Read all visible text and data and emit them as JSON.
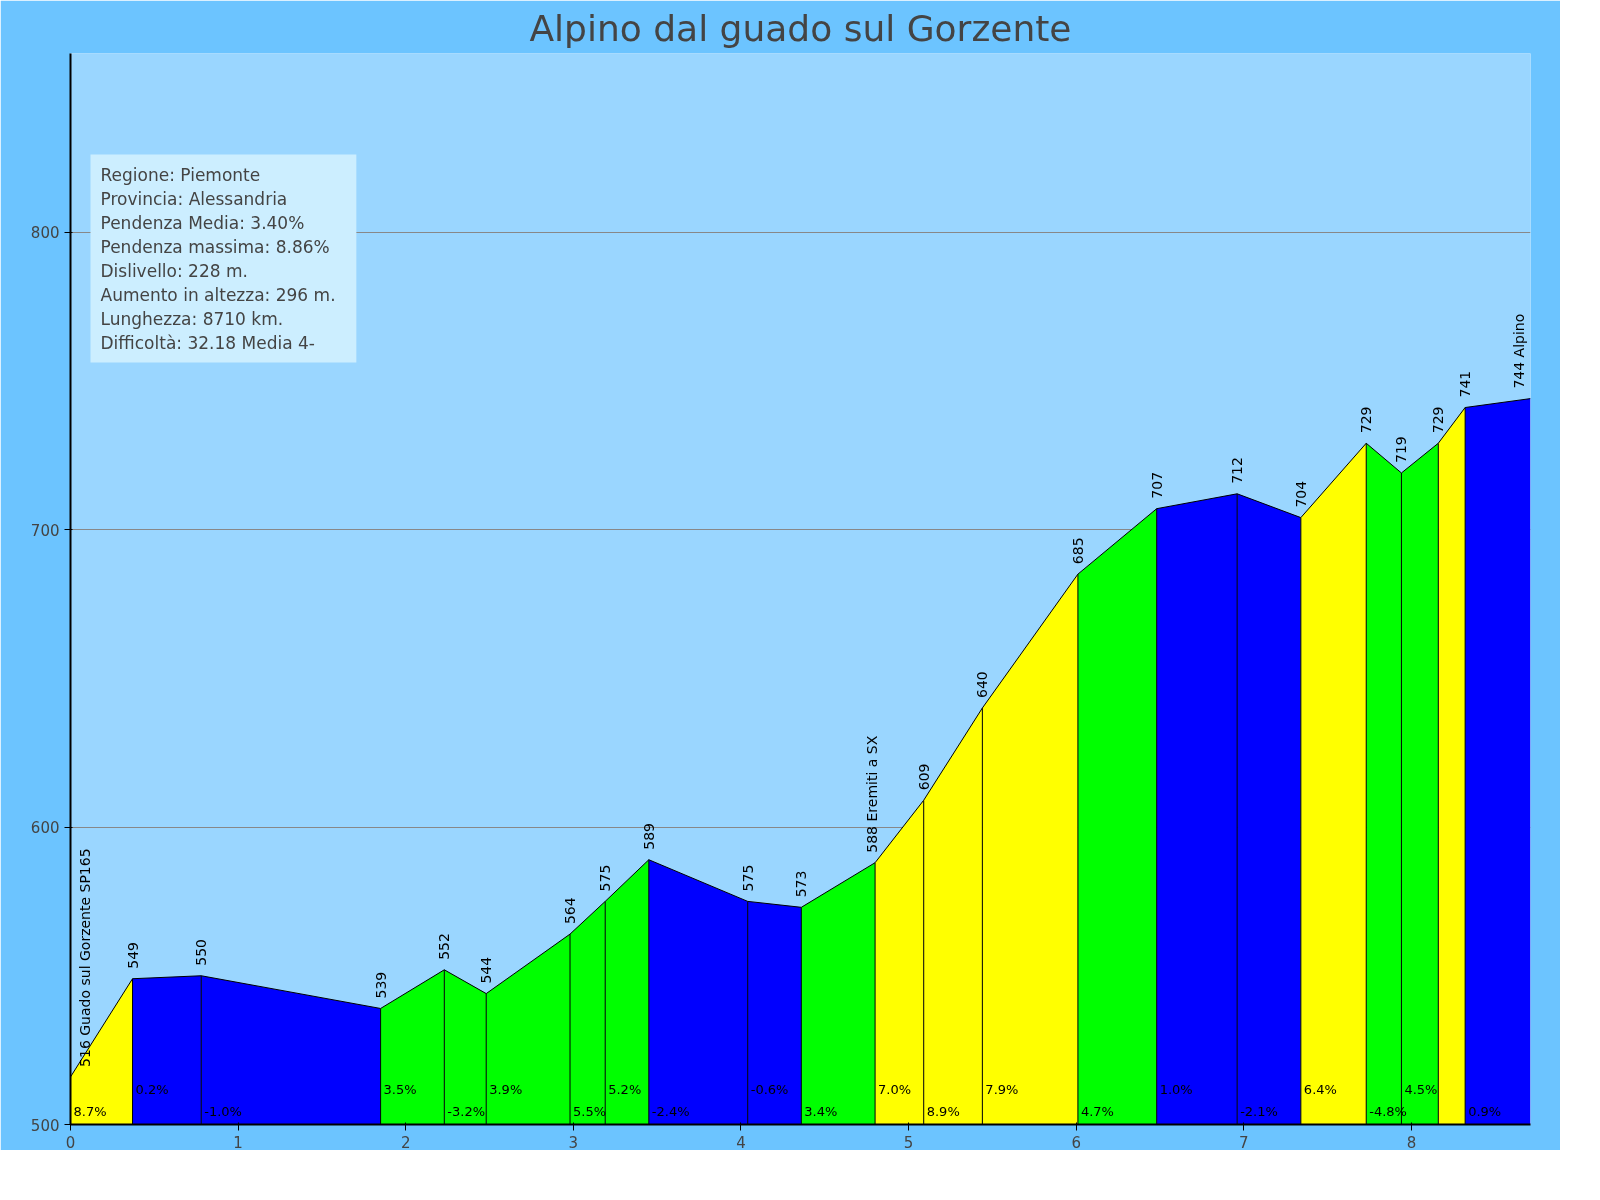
{
  "chart_data": {
    "type": "area",
    "title": "Alpino dal guado sul Gorzente",
    "xlim": [
      0,
      8.71
    ],
    "xticks": [
      0,
      1,
      2,
      3,
      4,
      5,
      6,
      7,
      8
    ],
    "ylim": [
      500,
      860
    ],
    "yticks": [
      500,
      600,
      700,
      800
    ],
    "grid": "y",
    "series": [
      {
        "x": [
          0,
          0.37
        ],
        "values": [
          516,
          549
        ],
        "color": "#ffff00"
      },
      {
        "x": [
          0.37,
          0.78
        ],
        "values": [
          549,
          550
        ],
        "color": "#0000ff"
      },
      {
        "x": [
          0.78,
          1.85
        ],
        "values": [
          550,
          539
        ],
        "color": "#0000ff"
      },
      {
        "x": [
          1.85,
          2.23
        ],
        "values": [
          539,
          552
        ],
        "color": "#00ff00"
      },
      {
        "x": [
          2.23,
          2.48
        ],
        "values": [
          552,
          544
        ],
        "color": "#00ff00"
      },
      {
        "x": [
          2.48,
          2.98
        ],
        "values": [
          544,
          564
        ],
        "color": "#00ff00"
      },
      {
        "x": [
          2.98,
          3.19
        ],
        "values": [
          564,
          575
        ],
        "color": "#00ff00"
      },
      {
        "x": [
          3.19,
          3.45
        ],
        "values": [
          575,
          589
        ],
        "color": "#00ff00"
      },
      {
        "x": [
          3.45,
          4.04
        ],
        "values": [
          589,
          575
        ],
        "color": "#0000ff"
      },
      {
        "x": [
          4.04,
          4.36
        ],
        "values": [
          575,
          573
        ],
        "color": "#0000ff"
      },
      {
        "x": [
          4.36,
          4.8
        ],
        "values": [
          573,
          588
        ],
        "color": "#00ff00"
      },
      {
        "x": [
          4.8,
          5.09
        ],
        "values": [
          588,
          609
        ],
        "color": "#ffff00"
      },
      {
        "x": [
          5.09,
          5.44
        ],
        "values": [
          609,
          640
        ],
        "color": "#ffff00"
      },
      {
        "x": [
          5.44,
          6.01
        ],
        "values": [
          640,
          685
        ],
        "color": "#ffff00"
      },
      {
        "x": [
          6.01,
          6.48
        ],
        "values": [
          685,
          707
        ],
        "color": "#00ff00"
      },
      {
        "x": [
          6.48,
          6.96
        ],
        "values": [
          707,
          712
        ],
        "color": "#0000ff"
      },
      {
        "x": [
          6.96,
          7.34
        ],
        "values": [
          712,
          704
        ],
        "color": "#0000ff"
      },
      {
        "x": [
          7.34,
          7.73
        ],
        "values": [
          704,
          729
        ],
        "color": "#ffff00"
      },
      {
        "x": [
          7.73,
          7.94
        ],
        "values": [
          729,
          719
        ],
        "color": "#00ff00"
      },
      {
        "x": [
          7.94,
          8.16
        ],
        "values": [
          719,
          729
        ],
        "color": "#00ff00"
      },
      {
        "x": [
          8.16,
          8.32
        ],
        "values": [
          729,
          741
        ],
        "color": "#ffff00"
      },
      {
        "x": [
          8.32,
          8.71
        ],
        "values": [
          741,
          744
        ],
        "color": "#0000ff"
      }
    ],
    "annotations": [
      "Regione: Piemonte",
      "Provincia: Alessandria",
      "Pendenza Media: 3.40%",
      "Pendenza massima: 8.86%",
      "Dislivello:   228 m.",
      "Aumento in altezza:   296 m.",
      "Lunghezza:  8710 km.",
      "Difficoltà: 32.18 Media 4-",
      {
        "text": "516 Guado sul Gorzente SP165",
        "x": 0,
        "y": 516
      },
      {
        "text": "549",
        "x": 0.37,
        "y": 549
      },
      {
        "text": "550",
        "x": 0.78,
        "y": 550
      },
      {
        "text": "539",
        "x": 1.85,
        "y": 539
      },
      {
        "text": "552",
        "x": 2.23,
        "y": 552
      },
      {
        "text": "544",
        "x": 2.48,
        "y": 544
      },
      {
        "text": "564",
        "x": 2.98,
        "y": 564
      },
      {
        "text": "575",
        "x": 3.19,
        "y": 575
      },
      {
        "text": "589",
        "x": 3.45,
        "y": 589
      },
      {
        "text": "575",
        "x": 4.04,
        "y": 575
      },
      {
        "text": "573",
        "x": 4.36,
        "y": 573
      },
      {
        "text": "588 Eremiti a SX",
        "x": 4.8,
        "y": 588
      },
      {
        "text": "609",
        "x": 5.09,
        "y": 609
      },
      {
        "text": "640",
        "x": 5.44,
        "y": 640
      },
      {
        "text": "685",
        "x": 6.01,
        "y": 685
      },
      {
        "text": "707",
        "x": 6.48,
        "y": 707
      },
      {
        "text": "712",
        "x": 6.96,
        "y": 712
      },
      {
        "text": "704",
        "x": 7.34,
        "y": 704
      },
      {
        "text": "729",
        "x": 7.73,
        "y": 729
      },
      {
        "text": "719",
        "x": 7.94,
        "y": 719
      },
      {
        "text": "729",
        "x": 8.16,
        "y": 729
      },
      {
        "text": "741",
        "x": 8.32,
        "y": 741
      },
      {
        "text": "744 Alpino",
        "x": 8.71,
        "y": 744
      },
      {
        "text": "8.7%",
        "x": 0,
        "y": 500
      },
      {
        "text": "0.2%",
        "x": 0.37,
        "y": 500
      },
      {
        "text": "-1.0%",
        "x": 0.78,
        "y": 500
      },
      {
        "text": "3.5%",
        "x": 1.85,
        "y": 500
      },
      {
        "text": "-3.2%",
        "x": 2.23,
        "y": 500
      },
      {
        "text": "3.9%",
        "x": 2.48,
        "y": 500
      },
      {
        "text": "5.5%",
        "x": 2.98,
        "y": 500
      },
      {
        "text": "5.2%",
        "x": 3.19,
        "y": 500
      },
      {
        "text": "-2.4%",
        "x": 3.45,
        "y": 500
      },
      {
        "text": "-0.6%",
        "x": 4.04,
        "y": 500
      },
      {
        "text": "3.4%",
        "x": 4.36,
        "y": 500
      },
      {
        "text": "7.0%",
        "x": 4.8,
        "y": 500
      },
      {
        "text": "8.9%",
        "x": 5.09,
        "y": 500
      },
      {
        "text": "7.9%",
        "x": 5.44,
        "y": 500
      },
      {
        "text": "4.7%",
        "x": 6.01,
        "y": 500
      },
      {
        "text": "1.0%",
        "x": 6.48,
        "y": 500
      },
      {
        "text": "-2.1%",
        "x": 6.96,
        "y": 500
      },
      {
        "text": "6.4%",
        "x": 7.34,
        "y": 500
      },
      {
        "text": "-4.8%",
        "x": 7.73,
        "y": 500
      },
      {
        "text": "4.5%",
        "x": 7.94,
        "y": 500
      },
      {
        "text": "0.9%",
        "x": 8.32,
        "y": 500
      }
    ]
  }
}
